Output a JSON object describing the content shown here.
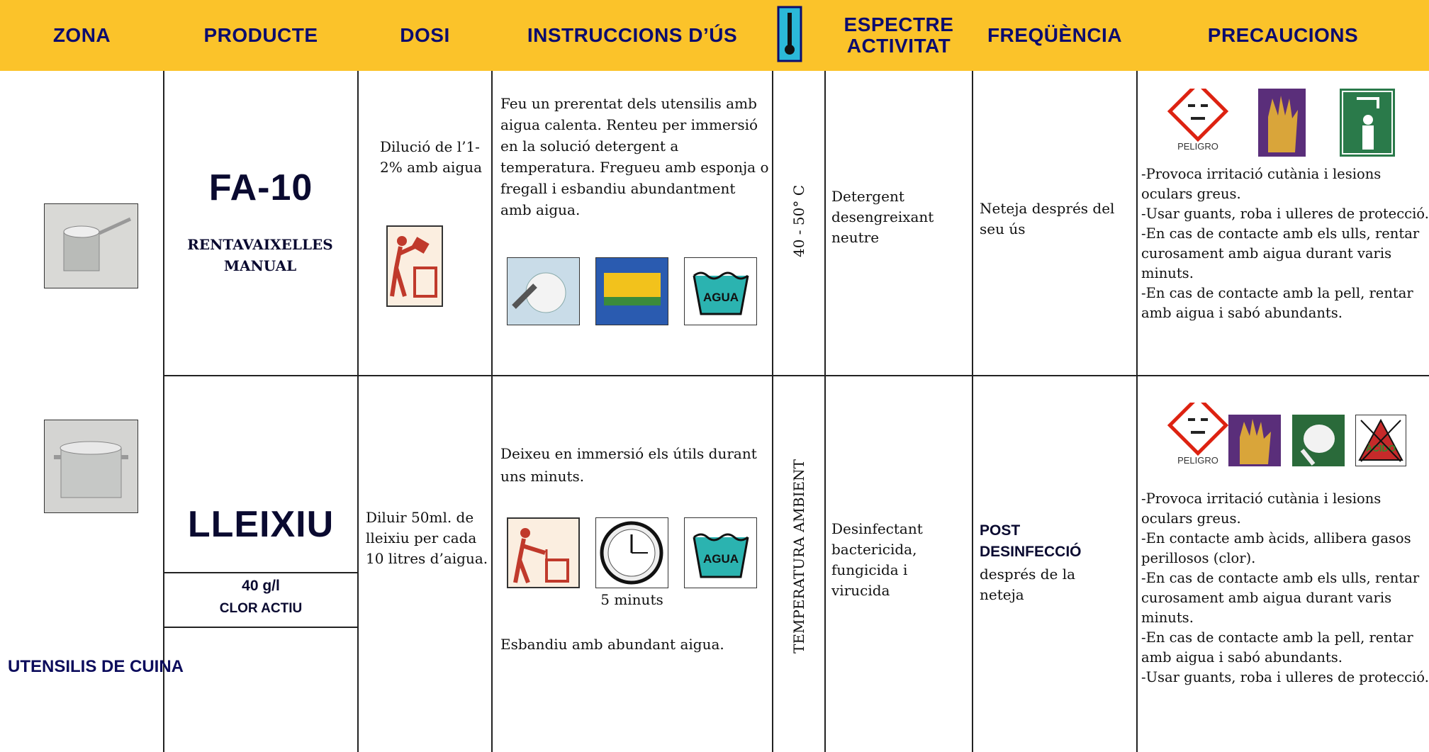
{
  "header": {
    "columns": [
      "ZONA",
      "PRODUCTE",
      "DOSI",
      "INSTRUCCIONS D’ÚS",
      "ESPECTRE ACTIVITAT",
      "FREQÜÈNCIA",
      "PRECAUCIONS"
    ]
  },
  "zone": "UTENSILIS DE CUINA",
  "rows": [
    {
      "product": "FA-10",
      "product_detail": "RENTAVAIXELLES MANUAL",
      "dose": "Dilució de l’1-2% amb aigua",
      "instructions": [
        "Feu un prerentat dels utensilis amb aigua calenta. Renteu per immersió en la solució detergent a temperatura. Fregueu amb esponja o fregall i esbandiu abundantment amb aigua."
      ],
      "water_icon": "AGUA",
      "temperature": "40 - 50° C",
      "spectrum": "Detergent desengreixant neutre",
      "frequency": "Neteja després del seu ús",
      "hazard_label": "PELIGRO",
      "precautions": [
        "-Provoca irritació cutània i lesions oculars greus.",
        "-Usar guants, roba i ulleres de protecció.",
        "-En cas de contacte amb els ulls, rentar curosament amb aigua durant varis minuts.",
        "-En cas de contacte amb la pell, rentar amb aigua i sabó abundants."
      ]
    },
    {
      "product": "LLEIXIU",
      "concentration": "40 g/l",
      "concentration_label": "CLOR ACTIU",
      "dose": "Diluir 50ml. de lleixiu per cada 10 litres d’aigua.",
      "instructions": [
        "Deixeu en immersió els útils durant uns minuts.",
        "Esbandiu amb abundant aigua."
      ],
      "time": "5 minuts",
      "water_icon": "AGUA",
      "temperature": "TEMPERATURA AMBIENT",
      "spectrum": "Desinfectant bactericida, fungicida i virucida",
      "frequency_title": "POST DESINFECCIÓ",
      "frequency": "després de la neteja",
      "hazard_label": "PELIGRO",
      "acid_label": "ÀCIDO",
      "precautions": [
        "-Provoca irritació cutània i lesions oculars greus.",
        "-En contacte amb àcids, allibera gasos perillosos (clor).",
        "-En cas de contacte amb els ulls, rentar curosament amb aigua durant varis minuts.",
        "-En cas de contacte amb la pell, rentar amb aigua i sabó abundants.",
        "-Usar guants, roba i ulleres de protecció."
      ]
    }
  ]
}
